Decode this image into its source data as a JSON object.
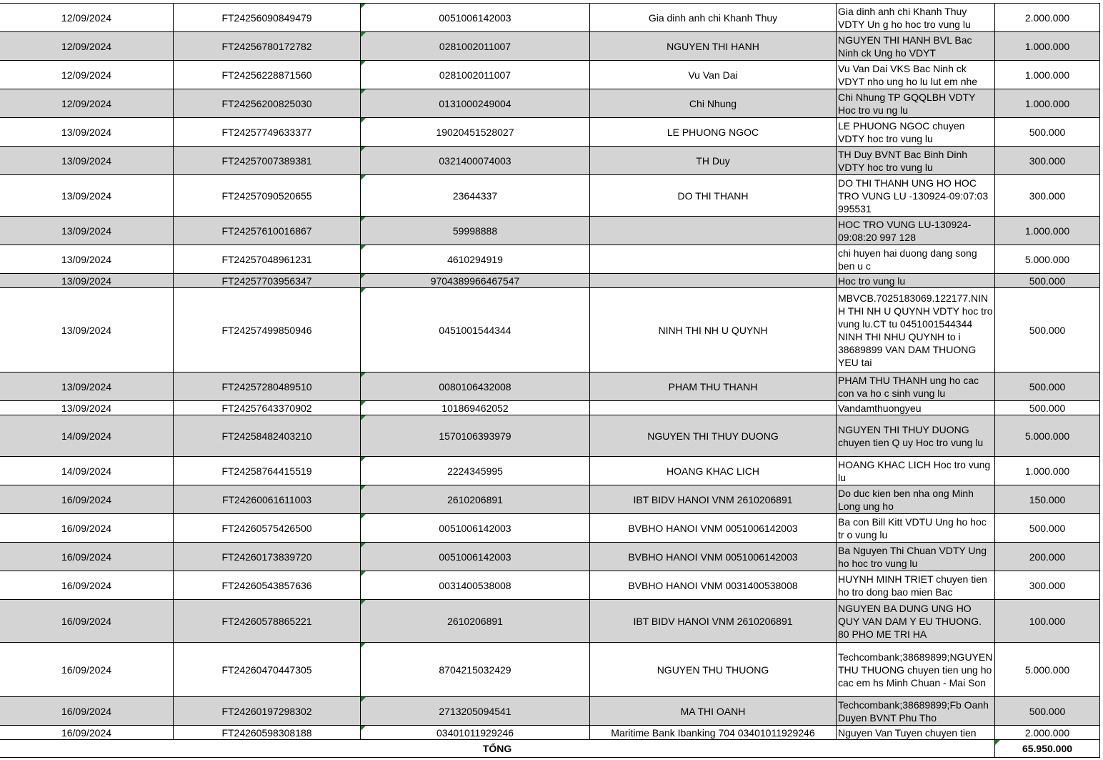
{
  "table": {
    "rows": [
      [
        "12/09/2024",
        "FT24256090849479",
        "0051006142003",
        "Gia dinh anh chi Khanh Thuy",
        "Gia dinh anh chi Khanh Thuy VDTY Un g ho hoc tro vung lu",
        "2.000.000"
      ],
      [
        "12/09/2024",
        "FT24256780172782",
        "0281002011007",
        "NGUYEN THI HANH",
        "NGUYEN THI HANH BVL Bac Ninh ck Ung  ho VDYT",
        "1.000.000"
      ],
      [
        "12/09/2024",
        "FT24256228871560",
        "0281002011007",
        "Vu Van Dai",
        "Vu Van Dai VKS Bac Ninh ck VDYT nho  ung ho lu lut em nhe",
        "1.000.000"
      ],
      [
        "12/09/2024",
        "FT24256200825030",
        "0131000249004",
        "Chi Nhung",
        "Chi Nhung TP GQQLBH VDTY Hoc tro vu ng lu",
        "1.000.000"
      ],
      [
        "13/09/2024",
        "FT24257749633377",
        "19020451528027",
        "LE PHUONG NGOC",
        "LE PHUONG NGOC chuyen VDTY hoc tro vung lu",
        "500.000"
      ],
      [
        "13/09/2024",
        "FT24257007389381",
        "0321400074003",
        "TH Duy",
        "TH Duy BVNT Bac Binh Dinh VDTY hoc tro vung lu",
        "300.000"
      ],
      [
        "13/09/2024",
        "FT24257090520655",
        "23644337",
        "DO THI THANH",
        "DO THI THANH UNG HO HOC TRO VUNG LU -130924-09:07:03 995531",
        "300.000"
      ],
      [
        "13/09/2024",
        "FT24257610016867",
        "59998888",
        null,
        "HOC TRO VUNG LU-130924-09:08:20 997 128",
        "1.000.000"
      ],
      [
        "13/09/2024",
        "FT24257048961231",
        "4610294919",
        null,
        "chi huyen hai duong dang song ben u c",
        "5.000.000"
      ],
      [
        "13/09/2024",
        "FT24257703956347",
        "9704389966467547",
        null,
        "Hoc tro vung lu",
        "500.000"
      ],
      [
        "13/09/2024",
        "FT24257499850946",
        "0451001544344",
        "NINH THI NH U QUYNH",
        "MBVCB.7025183069.122177.NINH THI NH U QUYNH VDTY hoc tro vung lu.CT tu 0451001544344 NINH THI NHU QUYNH to i 38689899 VAN DAM THUONG YEU tai",
        "500.000"
      ],
      [
        "13/09/2024",
        "FT24257280489510",
        "0080106432008",
        "PHAM THU THANH",
        "PHAM THU THANH ung ho cac con va ho c sinh vung lu",
        "500.000"
      ],
      [
        "13/09/2024",
        "FT24257643370902",
        "101869462052",
        null,
        "Vandamthuongyeu",
        "500.000"
      ],
      [
        "14/09/2024",
        "FT24258482403210",
        "1570106393979",
        "NGUYEN THI THUY DUONG",
        "NGUYEN THI THUY DUONG chuyen tien Q uy Hoc tro vung lu",
        "5.000.000"
      ],
      [
        "14/09/2024",
        "FT24258764415519",
        "2224345995",
        "HOANG KHAC LICH",
        "HOANG KHAC LICH Hoc tro vung lu",
        "1.000.000"
      ],
      [
        "16/09/2024",
        "FT24260061611003",
        "2610206891",
        "IBT BIDV HANOI VNM 2610206891",
        "Do duc kien ben nha ong Minh Long ung ho",
        "150.000"
      ],
      [
        "16/09/2024",
        "FT24260575426500",
        "0051006142003",
        "BVBHO HANOI VNM 0051006142003",
        "Ba con Bill Kitt VDTU Ung ho hoc tr o vung lu",
        "500.000"
      ],
      [
        "16/09/2024",
        "FT24260173839720",
        "0051006142003",
        "BVBHO  HANOI VNM 0051006142003",
        "Ba Nguyen Thi Chuan VDTY Ung ho hoc  tro vung lu",
        "200.000"
      ],
      [
        "16/09/2024",
        "FT24260543857636",
        "0031400538008",
        "BVBHO HANOI VNM 0031400538008",
        "HUYNH MINH TRIET chuyen tien ho tro  dong bao mien Bac",
        "300.000"
      ],
      [
        "16/09/2024",
        "FT24260578865221",
        "2610206891",
        "IBT BIDV HANOI VNM 2610206891",
        "NGUYEN BA DUNG UNG HO QUY VAN DAM Y EU THUONG. 80 PHO ME TRI HA",
        "100.000"
      ],
      [
        "16/09/2024",
        "FT24260470447305",
        "8704215032429",
        "NGUYEN THU THUONG",
        "Techcombank;38689899;NGUYEN THU THUONG chuyen tien ung ho cac em hs Minh Chuan - Mai Son",
        "5.000.000"
      ],
      [
        "16/09/2024",
        "FT24260197298302",
        "2713205094541",
        "MA THI OANH",
        "Techcombank;38689899;Fb Oanh Duyen BVNT Phu Tho",
        "500.000"
      ],
      [
        "16/09/2024",
        "FT24260598308188",
        "03401011929246",
        "Maritime Bank  Ibanking 704 03401011929246",
        "Nguyen Van Tuyen chuyen tien",
        "2.000.000"
      ]
    ],
    "total_label": "TỔNG",
    "total": "65.950.000"
  }
}
